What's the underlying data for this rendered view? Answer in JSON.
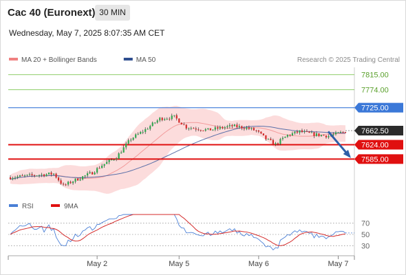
{
  "header": {
    "title": "Cac 40 (Euronext)",
    "interval": "30 MIN",
    "timestamp": "Wednesday, May 7, 2025 8:07:35 AM CET"
  },
  "legend": {
    "items": [
      {
        "label": "MA 20 + Bollinger Bands",
        "color": "#f08080"
      },
      {
        "label": "MA 50",
        "color": "#2e4e8f"
      }
    ],
    "credit": "Research © 2025 Trading Central"
  },
  "chart_data": {
    "type": "candlestick",
    "y_range": [
      7490,
      7835
    ],
    "x_ticks": [
      {
        "label": "May 2",
        "index": 36
      },
      {
        "label": "May 5",
        "index": 70
      },
      {
        "label": "May 6",
        "index": 103
      },
      {
        "label": "May 7",
        "index": 136
      }
    ],
    "levels": [
      {
        "value": 7815.0,
        "label": "7815.00",
        "kind": "resistance-2"
      },
      {
        "value": 7774.0,
        "label": "7774.00",
        "kind": "resistance-1"
      },
      {
        "value": 7725.0,
        "label": "7725.00",
        "kind": "pivot"
      },
      {
        "value": 7624.0,
        "label": "7624.00",
        "kind": "support-1"
      },
      {
        "value": 7585.0,
        "label": "7585.00",
        "kind": "support-2"
      }
    ],
    "last_price": {
      "value": 7662.5,
      "label": "7662.50"
    },
    "colors": {
      "up": "#2fa84f",
      "down": "#d42a2a",
      "resistance": "#8fce6a",
      "pivot": "#3b78d8",
      "support": "#e01010",
      "arrow": "#2e5fa8"
    },
    "rsi": {
      "legend": [
        {
          "label": "RSI",
          "color": "#4a7fd6"
        },
        {
          "label": "9MA",
          "color": "#e01010"
        }
      ],
      "levels": [
        {
          "value": 70,
          "label": "70"
        },
        {
          "value": 50,
          "label": "50"
        },
        {
          "value": 30,
          "label": "30"
        }
      ],
      "range": [
        15,
        85
      ]
    }
  }
}
